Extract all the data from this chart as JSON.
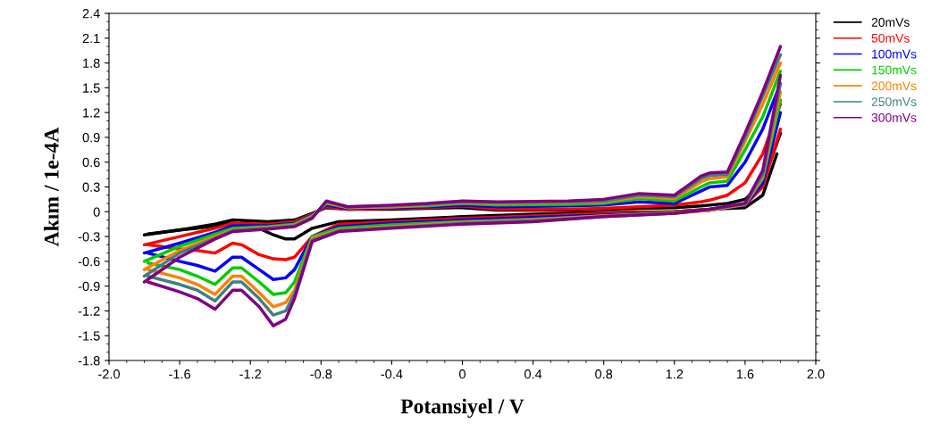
{
  "chart_data": {
    "type": "line",
    "xlabel": "Potansiyel / V",
    "ylabel": "Akım / 1e-4A",
    "xlim": [
      -2.0,
      2.0
    ],
    "xticks": [
      {
        "value": -2.0,
        "label": "-2.0"
      },
      -1.6,
      -1.2,
      -0.8,
      -0.4,
      0,
      0.4,
      0.8,
      1.2,
      1.6,
      {
        "value": 2.0,
        "label": "2.0"
      }
    ],
    "ylim": [
      -1.8,
      2.4
    ],
    "yticks": [
      -1.8,
      -1.5,
      -1.2,
      -0.9,
      -0.6,
      -0.3,
      0,
      0.3,
      0.6,
      0.9,
      1.2,
      1.5,
      1.8,
      2.1,
      2.4
    ],
    "grid": false,
    "legend": "top right",
    "marker": "none",
    "line_style": "solid",
    "series": [
      {
        "name": "20mVs",
        "color": "#000000",
        "x": [
          -1.8,
          -1.6,
          -1.4,
          -1.3,
          -1.1,
          -0.95,
          -0.85,
          -0.77,
          -0.65,
          -0.4,
          -0.2,
          0,
          0.2,
          0.6,
          0.8,
          1.0,
          1.2,
          1.35,
          1.4,
          1.5,
          1.6,
          1.7,
          1.8
        ],
        "values": [
          -0.28,
          -0.22,
          -0.15,
          -0.1,
          -0.12,
          -0.1,
          -0.02,
          0.05,
          0.03,
          0.03,
          0.04,
          0.05,
          0.02,
          0.02,
          0.03,
          0.04,
          0.05,
          0.07,
          0.08,
          0.1,
          0.15,
          0.35,
          0.95
        ]
      },
      {
        "color": "#000000",
        "x": [
          -1.78,
          -1.6,
          -1.5,
          -1.4,
          -1.3,
          -1.25,
          -1.15,
          -1.07,
          -1.0,
          -0.95,
          -0.85,
          -0.7,
          -0.4,
          0,
          0.4,
          0.8,
          1.2,
          1.4,
          1.6,
          1.7,
          1.78
        ],
        "values": [
          -0.27,
          -0.22,
          -0.2,
          -0.17,
          -0.14,
          -0.15,
          -0.2,
          -0.28,
          -0.33,
          -0.33,
          -0.2,
          -0.12,
          -0.1,
          -0.06,
          -0.03,
          -0.01,
          0.0,
          0.03,
          0.05,
          0.2,
          0.7
        ]
      },
      {
        "name": "50mVs",
        "color": "#ff0000",
        "x": [
          -1.8,
          -1.6,
          -1.4,
          -1.3,
          -1.1,
          -0.95,
          -0.85,
          -0.77,
          -0.65,
          -0.4,
          -0.2,
          0,
          0.2,
          0.6,
          0.8,
          1.0,
          1.2,
          1.35,
          1.4,
          1.5,
          1.6,
          1.7,
          1.8
        ],
        "values": [
          -0.4,
          -0.3,
          -0.2,
          -0.14,
          -0.15,
          -0.12,
          -0.03,
          0.06,
          0.03,
          0.04,
          0.05,
          0.07,
          0.03,
          0.03,
          0.04,
          0.06,
          0.08,
          0.12,
          0.14,
          0.2,
          0.35,
          0.7,
          1.3
        ]
      },
      {
        "color": "#ff0000",
        "x": [
          -1.78,
          -1.6,
          -1.5,
          -1.4,
          -1.3,
          -1.25,
          -1.15,
          -1.07,
          -1.0,
          -0.95,
          -0.85,
          -0.7,
          -0.4,
          0,
          0.4,
          0.8,
          1.2,
          1.4,
          1.6,
          1.7,
          1.8
        ],
        "values": [
          -0.4,
          -0.45,
          -0.47,
          -0.5,
          -0.38,
          -0.4,
          -0.52,
          -0.57,
          -0.58,
          -0.55,
          -0.3,
          -0.15,
          -0.12,
          -0.08,
          -0.05,
          -0.02,
          0.0,
          0.03,
          0.08,
          0.3,
          1.0
        ]
      },
      {
        "name": "100mVs",
        "color": "#0000ff",
        "x": [
          -1.8,
          -1.6,
          -1.4,
          -1.3,
          -1.1,
          -0.95,
          -0.85,
          -0.77,
          -0.65,
          -0.4,
          -0.2,
          0,
          0.2,
          0.6,
          0.8,
          1.0,
          1.2,
          1.35,
          1.4,
          1.5,
          1.6,
          1.7,
          1.8
        ],
        "values": [
          -0.5,
          -0.38,
          -0.25,
          -0.17,
          -0.17,
          -0.14,
          -0.04,
          0.08,
          0.04,
          0.05,
          0.06,
          0.08,
          0.06,
          0.07,
          0.08,
          0.12,
          0.1,
          0.25,
          0.3,
          0.32,
          0.6,
          1.0,
          1.55
        ]
      },
      {
        "color": "#0000ff",
        "x": [
          -1.78,
          -1.6,
          -1.5,
          -1.4,
          -1.3,
          -1.25,
          -1.15,
          -1.07,
          -1.0,
          -0.95,
          -0.85,
          -0.7,
          -0.4,
          0,
          0.4,
          0.8,
          1.2,
          1.4,
          1.6,
          1.7,
          1.8
        ],
        "values": [
          -0.5,
          -0.6,
          -0.65,
          -0.72,
          -0.55,
          -0.55,
          -0.7,
          -0.82,
          -0.8,
          -0.7,
          -0.3,
          -0.18,
          -0.14,
          -0.1,
          -0.07,
          -0.04,
          -0.01,
          0.02,
          0.08,
          0.35,
          1.2
        ]
      },
      {
        "name": "150mVs",
        "color": "#00cc00",
        "x": [
          -1.8,
          -1.6,
          -1.4,
          -1.3,
          -1.1,
          -0.95,
          -0.85,
          -0.77,
          -0.65,
          -0.4,
          -0.2,
          0,
          0.2,
          0.6,
          0.8,
          1.0,
          1.2,
          1.35,
          1.4,
          1.5,
          1.6,
          1.7,
          1.8
        ],
        "values": [
          -0.6,
          -0.42,
          -0.27,
          -0.2,
          -0.18,
          -0.15,
          -0.05,
          0.1,
          0.05,
          0.06,
          0.07,
          0.1,
          0.08,
          0.09,
          0.1,
          0.16,
          0.13,
          0.3,
          0.35,
          0.37,
          0.75,
          1.15,
          1.7
        ]
      },
      {
        "color": "#00cc00",
        "x": [
          -1.78,
          -1.6,
          -1.5,
          -1.4,
          -1.3,
          -1.25,
          -1.15,
          -1.07,
          -1.0,
          -0.95,
          -0.85,
          -0.7,
          -0.4,
          0,
          0.4,
          0.8,
          1.2,
          1.4,
          1.6,
          1.7,
          1.8
        ],
        "values": [
          -0.62,
          -0.7,
          -0.78,
          -0.88,
          -0.68,
          -0.68,
          -0.85,
          -1.0,
          -0.98,
          -0.85,
          -0.3,
          -0.2,
          -0.16,
          -0.12,
          -0.09,
          -0.05,
          -0.01,
          0.02,
          0.09,
          0.4,
          1.35
        ]
      },
      {
        "name": "200mVs",
        "color": "#ff8000",
        "x": [
          -1.8,
          -1.6,
          -1.4,
          -1.3,
          -1.1,
          -0.95,
          -0.85,
          -0.77,
          -0.65,
          -0.4,
          -0.2,
          0,
          0.2,
          0.6,
          0.8,
          1.0,
          1.2,
          1.35,
          1.4,
          1.5,
          1.6,
          1.7,
          1.8
        ],
        "values": [
          -0.7,
          -0.47,
          -0.3,
          -0.22,
          -0.19,
          -0.16,
          -0.06,
          0.11,
          0.05,
          0.06,
          0.08,
          0.11,
          0.1,
          0.11,
          0.12,
          0.18,
          0.16,
          0.36,
          0.4,
          0.42,
          0.85,
          1.3,
          1.8
        ]
      },
      {
        "color": "#ff8000",
        "x": [
          -1.78,
          -1.6,
          -1.5,
          -1.4,
          -1.3,
          -1.25,
          -1.15,
          -1.07,
          -1.0,
          -0.95,
          -0.85,
          -0.7,
          -0.4,
          0,
          0.4,
          0.8,
          1.2,
          1.4,
          1.6,
          1.7,
          1.8
        ],
        "values": [
          -0.7,
          -0.8,
          -0.88,
          -1.0,
          -0.78,
          -0.78,
          -0.98,
          -1.15,
          -1.1,
          -0.95,
          -0.32,
          -0.22,
          -0.18,
          -0.13,
          -0.1,
          -0.05,
          -0.02,
          0.02,
          0.09,
          0.42,
          1.45
        ]
      },
      {
        "name": "250mVs",
        "color": "#408080",
        "x": [
          -1.8,
          -1.6,
          -1.4,
          -1.3,
          -1.1,
          -0.95,
          -0.85,
          -0.77,
          -0.65,
          -0.4,
          -0.2,
          0,
          0.2,
          0.6,
          0.8,
          1.0,
          1.2,
          1.35,
          1.4,
          1.5,
          1.6,
          1.7,
          1.8
        ],
        "values": [
          -0.78,
          -0.5,
          -0.32,
          -0.23,
          -0.2,
          -0.17,
          -0.07,
          0.12,
          0.06,
          0.07,
          0.09,
          0.12,
          0.11,
          0.12,
          0.13,
          0.2,
          0.18,
          0.4,
          0.44,
          0.45,
          0.9,
          1.4,
          1.9
        ]
      },
      {
        "color": "#408080",
        "x": [
          -1.78,
          -1.6,
          -1.5,
          -1.4,
          -1.3,
          -1.25,
          -1.15,
          -1.07,
          -1.0,
          -0.95,
          -0.85,
          -0.7,
          -0.4,
          0,
          0.4,
          0.8,
          1.2,
          1.4,
          1.6,
          1.7,
          1.8
        ],
        "values": [
          -0.78,
          -0.88,
          -0.95,
          -1.08,
          -0.85,
          -0.85,
          -1.05,
          -1.25,
          -1.2,
          -1.0,
          -0.34,
          -0.23,
          -0.19,
          -0.14,
          -0.11,
          -0.06,
          -0.02,
          0.03,
          0.1,
          0.45,
          1.55
        ]
      },
      {
        "name": "300mVs",
        "color": "#800080",
        "x": [
          -1.8,
          -1.6,
          -1.4,
          -1.3,
          -1.1,
          -0.95,
          -0.85,
          -0.77,
          -0.65,
          -0.4,
          -0.2,
          0,
          0.2,
          0.6,
          0.8,
          1.0,
          1.2,
          1.35,
          1.4,
          1.5,
          1.6,
          1.7,
          1.8
        ],
        "values": [
          -0.85,
          -0.55,
          -0.33,
          -0.24,
          -0.21,
          -0.18,
          -0.08,
          0.13,
          0.06,
          0.08,
          0.1,
          0.13,
          0.12,
          0.13,
          0.15,
          0.22,
          0.2,
          0.43,
          0.47,
          0.48,
          0.95,
          1.45,
          2.0
        ]
      },
      {
        "color": "#800080",
        "x": [
          -1.78,
          -1.6,
          -1.5,
          -1.4,
          -1.3,
          -1.25,
          -1.15,
          -1.07,
          -1.0,
          -0.95,
          -0.85,
          -0.7,
          -0.4,
          0,
          0.4,
          0.8,
          1.2,
          1.4,
          1.6,
          1.7,
          1.8
        ],
        "values": [
          -0.85,
          -0.97,
          -1.05,
          -1.18,
          -0.95,
          -0.95,
          -1.15,
          -1.38,
          -1.3,
          -1.05,
          -0.36,
          -0.24,
          -0.2,
          -0.15,
          -0.12,
          -0.06,
          -0.02,
          0.03,
          0.1,
          0.5,
          1.65
        ]
      }
    ]
  }
}
